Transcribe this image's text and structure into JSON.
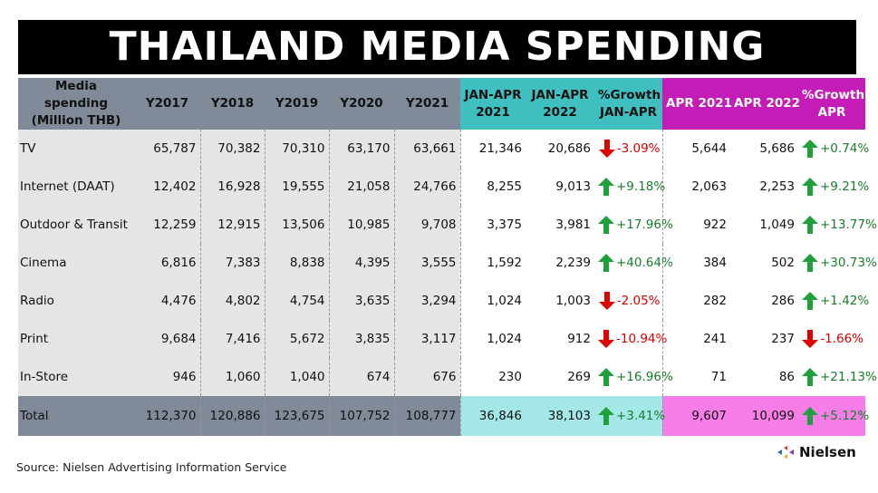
{
  "title": "THAILAND MEDIA SPENDING",
  "headers": [
    "Media spending (Million THB)",
    "Y2017",
    "Y2018",
    "Y2019",
    "Y2020",
    "Y2021",
    "JAN-APR 2021",
    "JAN-APR 2022",
    "%Growth JAN-APR",
    "APR 2021",
    "APR 2022",
    "%Growth APR"
  ],
  "rows": [
    {
      "name": "TV",
      "y2017": "65,787",
      "y2018": "70,382",
      "y2019": "70,310",
      "y2020": "63,170",
      "y2021": "63,661",
      "ja2021": "21,346",
      "ja2022": "20,686",
      "ja_growth": "-3.09%",
      "ja_dir": "down",
      "apr2021": "5,644",
      "apr2022": "5,686",
      "apr_growth": "+0.74%",
      "apr_dir": "up"
    },
    {
      "name": "Internet (DAAT)",
      "y2017": "12,402",
      "y2018": "16,928",
      "y2019": "19,555",
      "y2020": "21,058",
      "y2021": "24,766",
      "ja2021": "8,255",
      "ja2022": "9,013",
      "ja_growth": "+9.18%",
      "ja_dir": "up",
      "apr2021": "2,063",
      "apr2022": "2,253",
      "apr_growth": "+9.21%",
      "apr_dir": "up"
    },
    {
      "name": "Outdoor & Transit",
      "y2017": "12,259",
      "y2018": "12,915",
      "y2019": "13,506",
      "y2020": "10,985",
      "y2021": "9,708",
      "ja2021": "3,375",
      "ja2022": "3,981",
      "ja_growth": "+17.96%",
      "ja_dir": "up",
      "apr2021": "922",
      "apr2022": "1,049",
      "apr_growth": "+13.77%",
      "apr_dir": "up"
    },
    {
      "name": "Cinema",
      "y2017": "6,816",
      "y2018": "7,383",
      "y2019": "8,838",
      "y2020": "4,395",
      "y2021": "3,555",
      "ja2021": "1,592",
      "ja2022": "2,239",
      "ja_growth": "+40.64%",
      "ja_dir": "up",
      "apr2021": "384",
      "apr2022": "502",
      "apr_growth": "+30.73%",
      "apr_dir": "up"
    },
    {
      "name": "Radio",
      "y2017": "4,476",
      "y2018": "4,802",
      "y2019": "4,754",
      "y2020": "3,635",
      "y2021": "3,294",
      "ja2021": "1,024",
      "ja2022": "1,003",
      "ja_growth": "-2.05%",
      "ja_dir": "down",
      "apr2021": "282",
      "apr2022": "286",
      "apr_growth": "+1.42%",
      "apr_dir": "up"
    },
    {
      "name": "Print",
      "y2017": "9,684",
      "y2018": "7,416",
      "y2019": "5,672",
      "y2020": "3,835",
      "y2021": "3,117",
      "ja2021": "1,024",
      "ja2022": "912",
      "ja_growth": "-10.94%",
      "ja_dir": "down",
      "apr2021": "241",
      "apr2022": "237",
      "apr_growth": "-1.66%",
      "apr_dir": "down"
    },
    {
      "name": "In-Store",
      "y2017": "946",
      "y2018": "1,060",
      "y2019": "1,040",
      "y2020": "674",
      "y2021": "676",
      "ja2021": "230",
      "ja2022": "269",
      "ja_growth": "+16.96%",
      "ja_dir": "up",
      "apr2021": "71",
      "apr2022": "86",
      "apr_growth": "+21.13%",
      "apr_dir": "up"
    }
  ],
  "total": {
    "name": "Total",
    "y2017": "112,370",
    "y2018": "120,886",
    "y2019": "123,675",
    "y2020": "107,752",
    "y2021": "108,777",
    "ja2021": "36,846",
    "ja2022": "38,103",
    "ja_growth": "+3.41%",
    "ja_dir": "up",
    "apr2021": "9,607",
    "apr2022": "10,099",
    "apr_growth": "+5.12%",
    "apr_dir": "up"
  },
  "source": "Source: Nielsen Advertising Information Service",
  "logo_text": "Nielsen",
  "colors": {
    "gray_header": "#818a99",
    "teal_header": "#40bfc0",
    "magenta_header": "#c41cb6",
    "up": "#1fa03a",
    "down": "#e10000"
  }
}
